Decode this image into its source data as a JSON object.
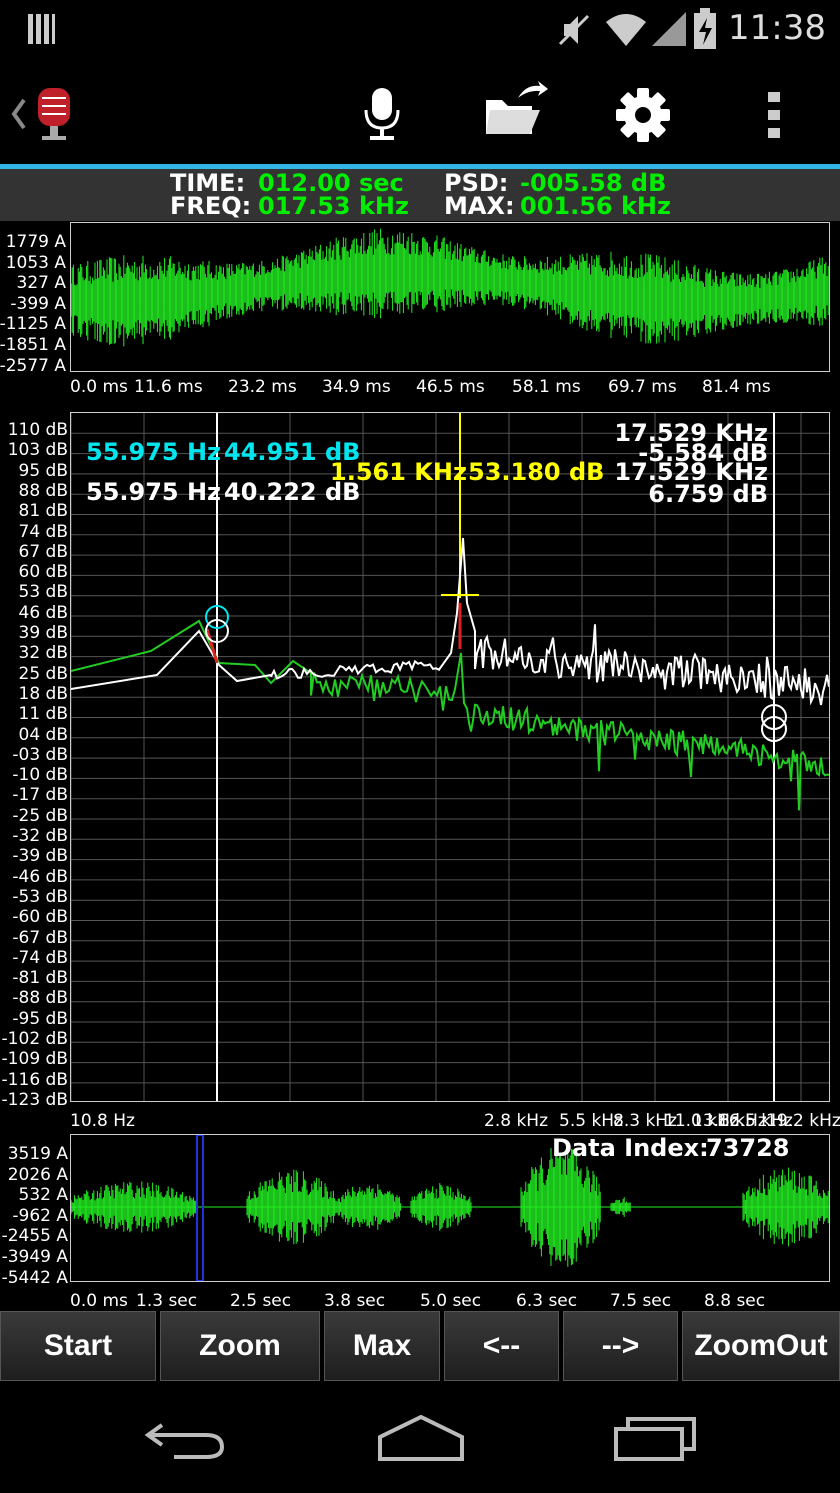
{
  "status_bar": {
    "time": "11:38",
    "icons": [
      "bars-icon",
      "mute-icon",
      "wifi-icon",
      "signal-icon",
      "battery-icon"
    ]
  },
  "action_bar": {
    "icons": [
      "back-chevron-icon",
      "app-mic-logo-icon",
      "microphone-icon",
      "folder-share-icon",
      "settings-gear-icon",
      "overflow-menu-icon"
    ]
  },
  "info": {
    "time_label": "TIME:",
    "time_value": "012.00 sec",
    "freq_label": "FREQ:",
    "freq_value": "017.53 kHz",
    "psd_label": "PSD:",
    "psd_value": "-005.58 dB",
    "max_label": "MAX:",
    "max_value": "001.56 kHz"
  },
  "waveform": {
    "y_labels": [
      "1779 A",
      "1053 A",
      "327 A",
      "-399 A",
      "-1125 A",
      "-1851 A",
      "-2577 A"
    ],
    "x_labels": [
      "0.0 ms",
      "11.6 ms",
      "23.2 ms",
      "34.9 ms",
      "46.5 ms",
      "58.1 ms",
      "69.7 ms",
      "81.4 ms"
    ]
  },
  "spectrum": {
    "y_labels": [
      "110 dB",
      "103 dB",
      "95 dB",
      "88 dB",
      "81 dB",
      "74 dB",
      "67 dB",
      "60 dB",
      "53 dB",
      "46 dB",
      "39 dB",
      "32 dB",
      "25 dB",
      "18 dB",
      "11 dB",
      "04 dB",
      "-03 dB",
      "-10 dB",
      "-17 dB",
      "-25 dB",
      "-32 dB",
      "-39 dB",
      "-46 dB",
      "-53 dB",
      "-60 dB",
      "-67 dB",
      "-74 dB",
      "-81 dB",
      "-88 dB",
      "-95 dB",
      "-102 dB",
      "-109 dB",
      "-116 dB",
      "-123 dB"
    ],
    "x_labels": [
      "10.8 Hz",
      "2.8 kHz",
      "5.5 kHz",
      "8.3 kHz",
      "11.0 kHz",
      "13.8 kHz",
      "16.5 kHz",
      "19.2 kHz"
    ],
    "marker_cyan": {
      "freq": "55.975 Hz",
      "db": "44.951 dB"
    },
    "marker_white": {
      "freq": "55.975 Hz",
      "db": "40.222 dB"
    },
    "marker_yellow": {
      "freq": "1.561 KHz",
      "db": "53.180 dB"
    },
    "marker_right": {
      "freq1": "17.529 KHz",
      "db1": "-5.584 dB",
      "freq2": "17.529 KHz",
      "db2": "6.759 dB"
    },
    "colors": {
      "cyan": "#00e5ee",
      "yellow": "#ffff00",
      "green": "#00cc00",
      "white": "#ffffff"
    }
  },
  "overview": {
    "y_labels": [
      "3519 A",
      "2026 A",
      "532 A",
      "-962 A",
      "-2455 A",
      "-3949 A",
      "-5442 A"
    ],
    "x_labels": [
      "0.0 ms",
      "1.3 sec",
      "2.5 sec",
      "3.8 sec",
      "5.0 sec",
      "6.3 sec",
      "7.5 sec",
      "8.8 sec"
    ],
    "data_index_label": "Data Index:",
    "data_index_value": "73728"
  },
  "buttons": {
    "start": "Start",
    "zoom": "Zoom",
    "max": "Max",
    "prev": "<--",
    "next": "-->",
    "zoomout": "ZoomOut"
  },
  "nav": {
    "icons": [
      "back-icon",
      "home-icon",
      "recents-icon"
    ]
  }
}
